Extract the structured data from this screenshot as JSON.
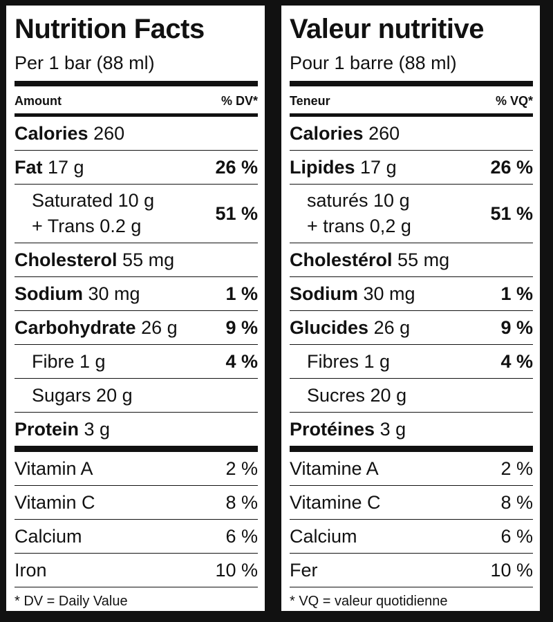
{
  "english": {
    "title": "Nutrition Facts",
    "serving": "Per 1 bar (88 ml)",
    "header_amount": "Amount",
    "header_pct": "% DV*",
    "calories_label": "Calories",
    "calories_value": "260",
    "fat_label": "Fat",
    "fat_amount": "17 g",
    "fat_dv": "26 %",
    "saturated_line": "Saturated 10 g",
    "trans_line": "+ Trans 0.2 g",
    "satfat_dv": "51 %",
    "cholesterol_label": "Cholesterol",
    "cholesterol_amount": "55 mg",
    "sodium_label": "Sodium",
    "sodium_amount": "30 mg",
    "sodium_dv": "1 %",
    "carb_label": "Carbohydrate",
    "carb_amount": "26 g",
    "carb_dv": "9 %",
    "fibre_line": "Fibre 1 g",
    "fibre_dv": "4 %",
    "sugars_line": "Sugars 20 g",
    "protein_label": "Protein",
    "protein_amount": "3 g",
    "vitamins": [
      {
        "name": "Vitamin A",
        "dv": "2 %"
      },
      {
        "name": "Vitamin C",
        "dv": "8 %"
      },
      {
        "name": "Calcium",
        "dv": "6 %"
      },
      {
        "name": "Iron",
        "dv": "10 %"
      }
    ],
    "footnote": "* DV = Daily Value"
  },
  "french": {
    "title": "Valeur nutritive",
    "serving": "Pour 1 barre (88 ml)",
    "header_amount": "Teneur",
    "header_pct": "% VQ*",
    "calories_label": "Calories",
    "calories_value": "260",
    "fat_label": "Lipides",
    "fat_amount": "17 g",
    "fat_dv": "26 %",
    "saturated_line": "saturés 10 g",
    "trans_line": "+ trans 0,2 g",
    "satfat_dv": "51 %",
    "cholesterol_label": "Cholestérol",
    "cholesterol_amount": "55 mg",
    "sodium_label": "Sodium",
    "sodium_amount": "30 mg",
    "sodium_dv": "1 %",
    "carb_label": "Glucides",
    "carb_amount": "26 g",
    "carb_dv": "9 %",
    "fibre_line": "Fibres 1 g",
    "fibre_dv": "4 %",
    "sugars_line": "Sucres 20 g",
    "protein_label": "Protéines",
    "protein_amount": "3 g",
    "vitamins": [
      {
        "name": "Vitamine A",
        "dv": "2 %"
      },
      {
        "name": "Vitamine C",
        "dv": "8 %"
      },
      {
        "name": "Calcium",
        "dv": "6 %"
      },
      {
        "name": "Fer",
        "dv": "10 %"
      }
    ],
    "footnote": "* VQ = valeur quotidienne"
  },
  "colors": {
    "ink": "#111111",
    "panel": "#ffffff",
    "background": "#111111"
  }
}
